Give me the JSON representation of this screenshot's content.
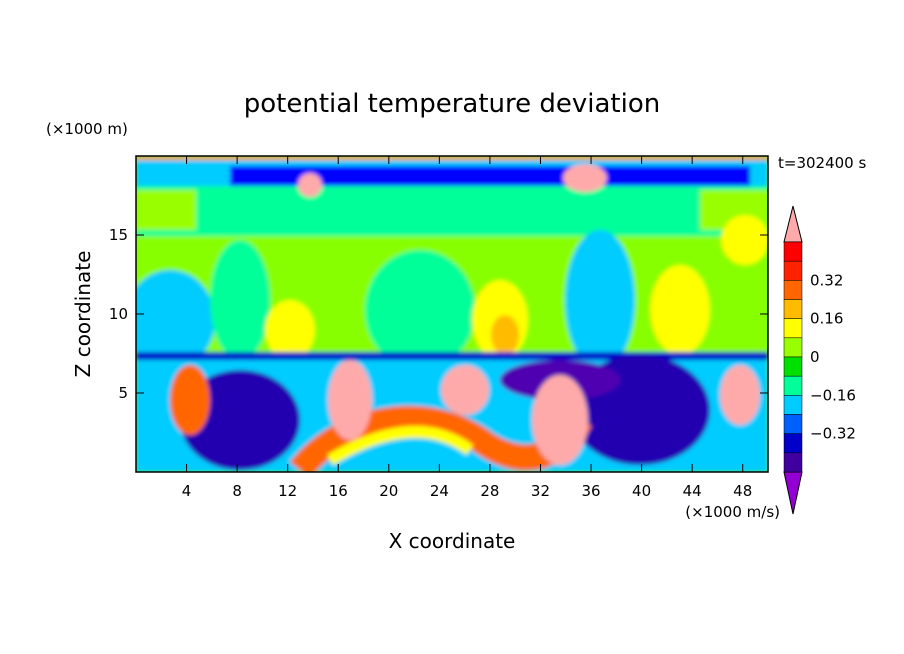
{
  "chart_data": {
    "type": "heatmap",
    "title": "potential temperature deviation",
    "xlabel": "X coordinate",
    "ylabel": "Z coordinate",
    "x_unit": "(×1000 m/s)",
    "y_unit": "(×1000 m)",
    "time_label": "t=302400 s",
    "xlim": [
      0,
      50
    ],
    "ylim": [
      0,
      20
    ],
    "xticks": [
      4,
      8,
      12,
      16,
      20,
      24,
      28,
      32,
      36,
      40,
      44,
      48
    ],
    "yticks": [
      5,
      10,
      15
    ],
    "colorbar": {
      "levels": [
        -0.48,
        -0.4,
        -0.32,
        -0.24,
        -0.16,
        -0.08,
        0,
        0.08,
        0.16,
        0.24,
        0.32,
        0.4
      ],
      "colors": [
        "#9400d3",
        "#4000a0",
        "#0000c8",
        "#0060ff",
        "#00ccff",
        "#00ff99",
        "#00e000",
        "#99ff00",
        "#ffff00",
        "#ffbb00",
        "#ff6600",
        "#ff2200",
        "#ff0000",
        "#ffaaaa"
      ],
      "labeled_ticks": [
        0.32,
        0.16,
        0,
        -0.16,
        -0.32
      ],
      "tick_labels": [
        "0.32",
        "0.16",
        "0",
        "−0.16",
        "−0.32"
      ]
    },
    "field_description_regions": [
      {
        "x": [
          0,
          50
        ],
        "z": [
          18.5,
          19.5
        ],
        "value": -0.35
      },
      {
        "x": [
          0,
          50
        ],
        "z": [
          7,
          18
        ],
        "value": 0.05
      },
      {
        "x": [
          0,
          50
        ],
        "z": [
          0,
          7
        ],
        "value": -0.1
      }
    ]
  }
}
